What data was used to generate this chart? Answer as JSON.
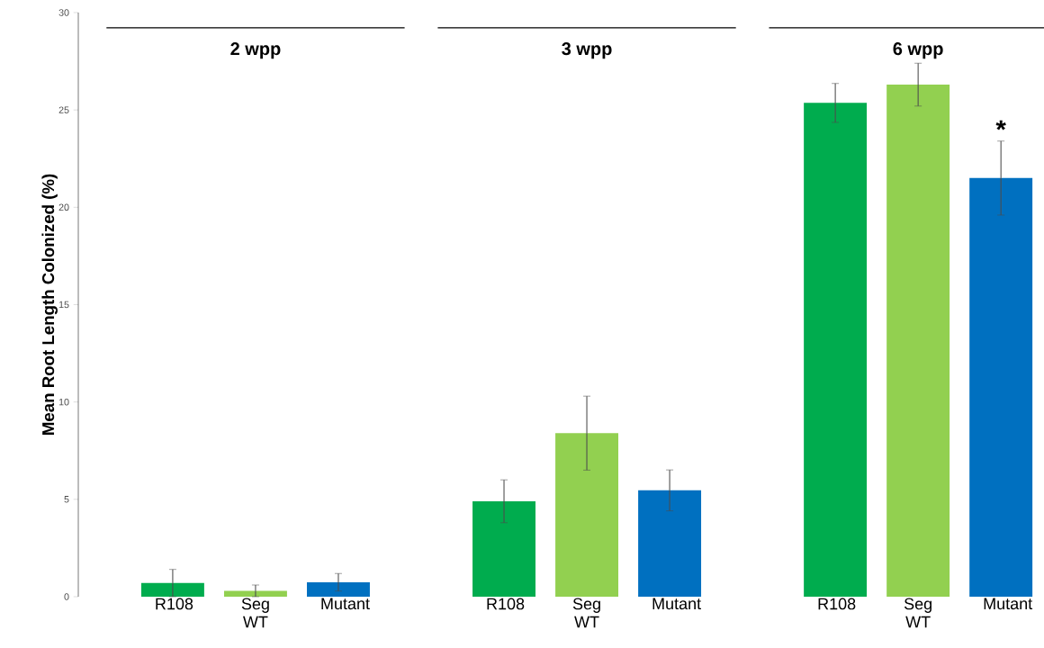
{
  "chart_data": {
    "type": "bar",
    "ylabel": "Mean Root  Length Colonized (%)",
    "categories": [
      "R108",
      "Seg WT",
      "Mutant",
      null,
      "R108",
      "Seg WT",
      "Mutant",
      null,
      "R108",
      "Seg WT",
      "Mutant"
    ],
    "values": [
      0.7,
      0.3,
      0.74,
      null,
      4.9,
      8.4,
      5.46,
      null,
      25.36,
      26.3,
      21.5
    ],
    "errors": [
      0.7,
      0.3,
      0.45,
      null,
      1.1,
      1.9,
      1.05,
      null,
      1.0,
      1.1,
      1.9
    ],
    "colors": [
      "#00ac4e",
      "#92d050",
      "#0070c0",
      null,
      "#00ac4e",
      "#92d050",
      "#0070c0",
      null,
      "#00ac4e",
      "#92d050",
      "#0070c0"
    ],
    "value_labels": [
      null,
      null,
      null,
      null,
      null,
      null,
      null,
      null,
      null,
      null,
      "*"
    ],
    "annotations": [
      "2 wpp",
      "3 wpp",
      "6 wpp"
    ],
    "ylim": [
      0,
      30
    ],
    "yticks": [
      0,
      5,
      10,
      15,
      20,
      25,
      30
    ]
  }
}
